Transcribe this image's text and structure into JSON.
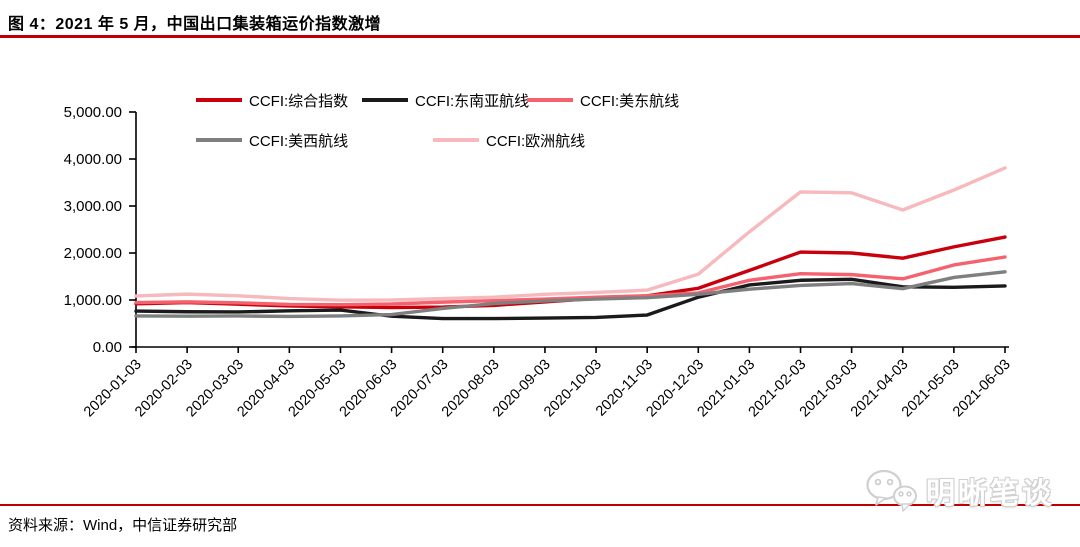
{
  "header": {
    "title": "图 4：2021 年 5 月，中国出口集装箱运价指数激增"
  },
  "footer": {
    "source": "资料来源：Wind，中信证券研究部",
    "watermark": "明晰笔谈"
  },
  "colors": {
    "accent_red": "#c00000",
    "axis": "#000000"
  },
  "chart_data": {
    "type": "line",
    "title": "",
    "xlabel": "",
    "ylabel": "",
    "grid": false,
    "legend_position": "top",
    "ylim": [
      0,
      5000
    ],
    "y_ticks": {
      "values": [
        0,
        1000,
        2000,
        3000,
        4000,
        5000
      ],
      "labels": [
        "0.00",
        "1,000.00",
        "2,000.00",
        "3,000.00",
        "4,000.00",
        "5,000.00"
      ]
    },
    "x": [
      "2020-01-03",
      "2020-02-03",
      "2020-03-03",
      "2020-04-03",
      "2020-05-03",
      "2020-06-03",
      "2020-07-03",
      "2020-08-03",
      "2020-09-03",
      "2020-10-03",
      "2020-11-03",
      "2020-12-03",
      "2021-01-03",
      "2021-02-03",
      "2021-03-03",
      "2021-04-03",
      "2021-05-03",
      "2021-06-03"
    ],
    "series": [
      {
        "name": "CCFI:综合指数",
        "color": "#c9000b",
        "values": [
          920,
          945,
          910,
          875,
          855,
          840,
          850,
          885,
          960,
          1035,
          1090,
          1250,
          1630,
          2020,
          2000,
          1890,
          2130,
          2340
        ]
      },
      {
        "name": "CCFI:东南亚航线",
        "color": "#1a1a1a",
        "values": [
          765,
          750,
          745,
          770,
          785,
          655,
          605,
          605,
          615,
          630,
          680,
          1060,
          1320,
          1420,
          1440,
          1280,
          1270,
          1300
        ]
      },
      {
        "name": "CCFI:美东航线",
        "color": "#f4626e",
        "values": [
          945,
          960,
          940,
          905,
          900,
          915,
          955,
          985,
          1020,
          1060,
          1090,
          1150,
          1420,
          1560,
          1540,
          1450,
          1745,
          1915
        ]
      },
      {
        "name": "CCFI:美西航线",
        "color": "#7f7f7f",
        "values": [
          660,
          655,
          660,
          650,
          660,
          690,
          820,
          925,
          980,
          1020,
          1050,
          1120,
          1230,
          1310,
          1350,
          1240,
          1480,
          1600
        ]
      },
      {
        "name": "CCFI:欧洲航线",
        "color": "#f6b9bd",
        "values": [
          1085,
          1125,
          1090,
          1030,
          995,
          1000,
          1030,
          1060,
          1120,
          1160,
          1210,
          1550,
          2450,
          3300,
          3280,
          2915,
          3340,
          3810
        ]
      }
    ]
  }
}
